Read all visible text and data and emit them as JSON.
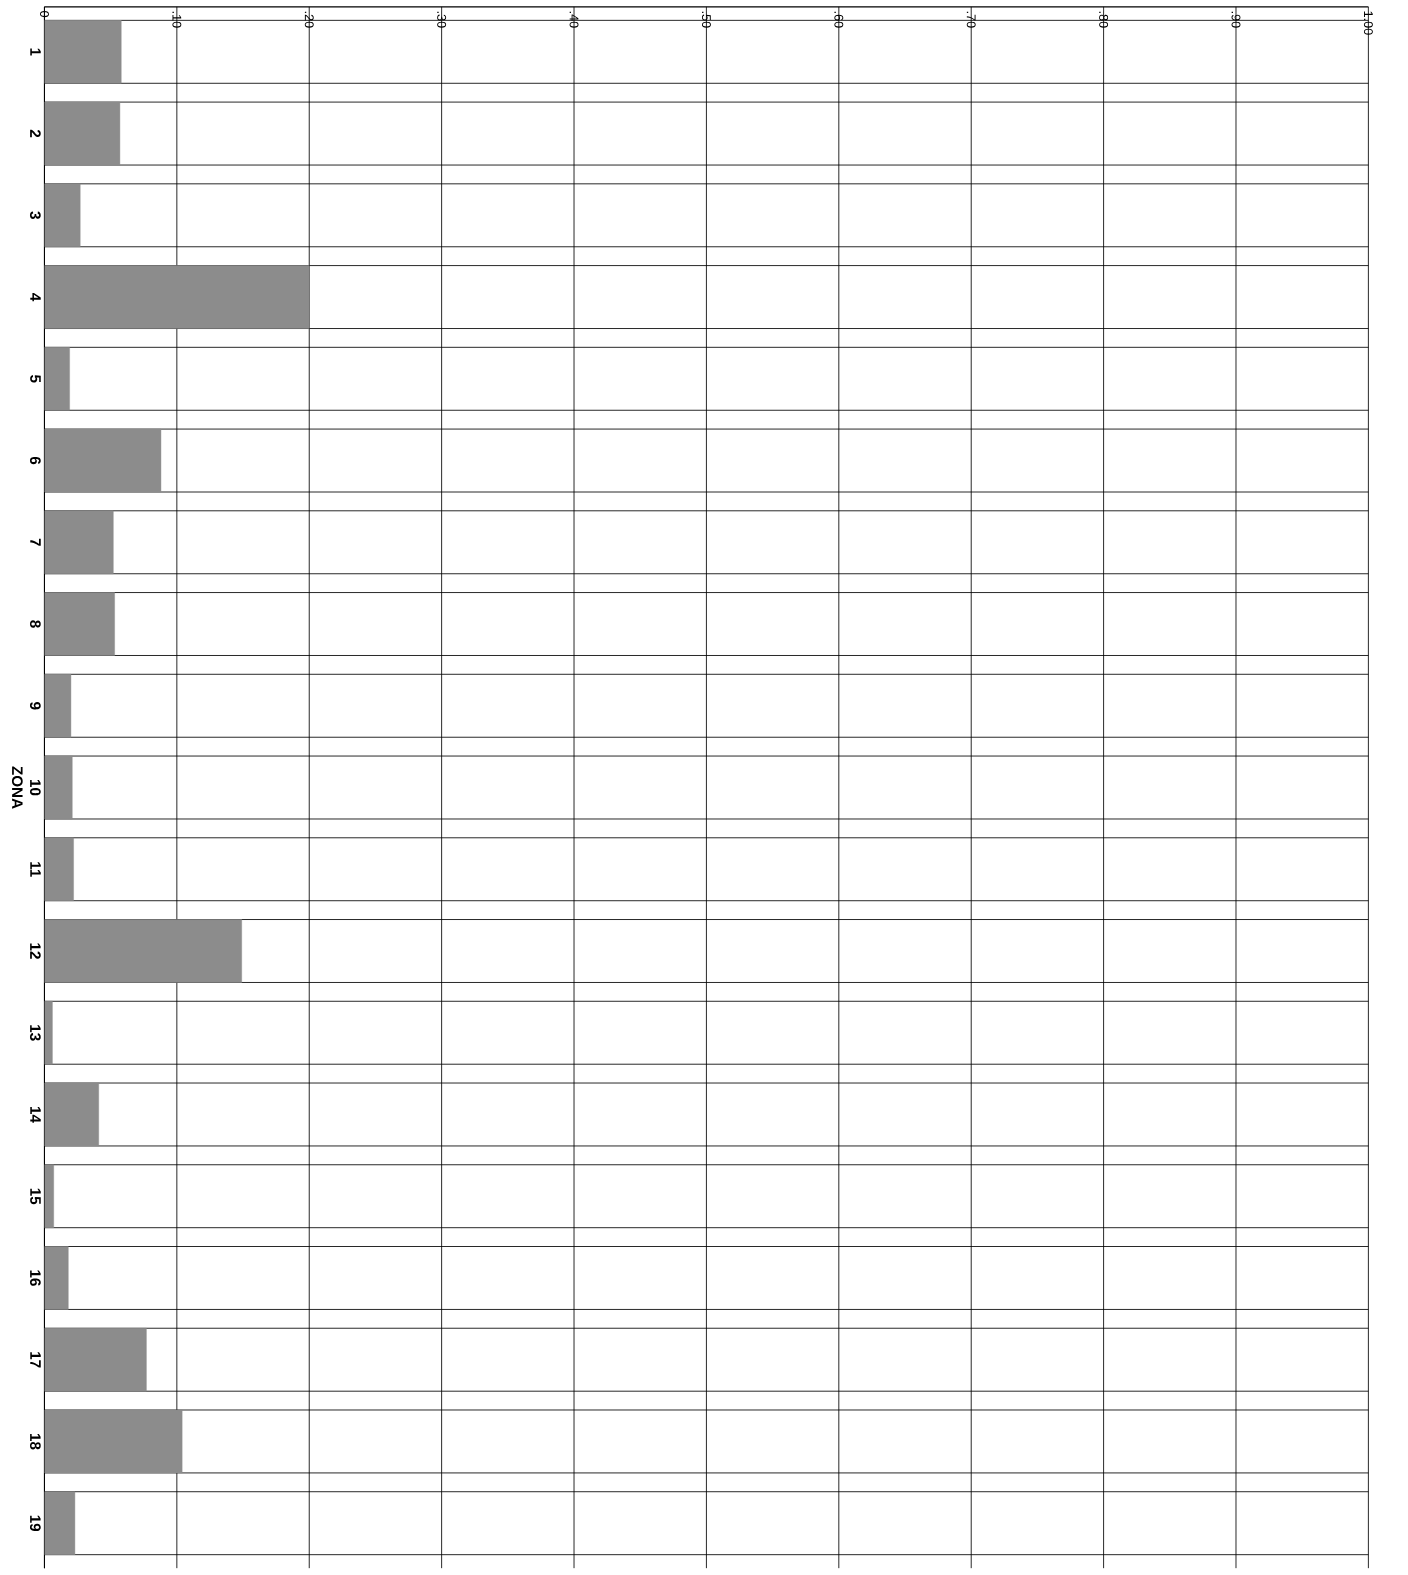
{
  "chart_data": {
    "type": "bar",
    "orientation": "horizontal",
    "ylabel": "ZONA",
    "categories": [
      "1",
      "2",
      "3",
      "4",
      "5",
      "6",
      "7",
      "8",
      "9",
      "10",
      "11",
      "12",
      "13",
      "14",
      "15",
      "16",
      "17",
      "18",
      "19"
    ],
    "values": [
      0.058,
      0.057,
      0.027,
      0.2,
      0.019,
      0.088,
      0.052,
      0.053,
      0.02,
      0.021,
      0.022,
      0.149,
      0.006,
      0.041,
      0.007,
      0.018,
      0.077,
      0.104,
      0.023
    ],
    "color": "#8c8c8c",
    "xlim": [
      0,
      1.0
    ],
    "xticks": [
      0,
      {
        "value": 0.1,
        "label": ".10"
      },
      {
        "value": 0.2,
        "label": ".20"
      },
      {
        "value": 0.3,
        "label": ".30"
      },
      {
        "value": 0.4,
        "label": ".40"
      },
      {
        "value": 0.5,
        "label": ".50"
      },
      {
        "value": 0.6,
        "label": ".60"
      },
      {
        "value": 0.7,
        "label": ".70"
      },
      {
        "value": 0.8,
        "label": ".80"
      },
      {
        "value": 0.9,
        "label": ".90"
      },
      {
        "value": 1.0,
        "label": "1.00"
      }
    ],
    "grid": true
  }
}
